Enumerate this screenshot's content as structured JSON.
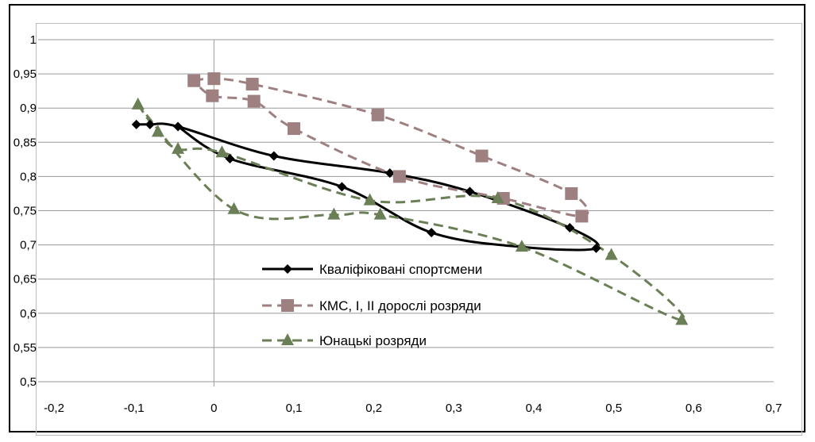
{
  "chart_data": {
    "type": "scatter",
    "title": "",
    "xlabel": "",
    "ylabel": "",
    "xlim": [
      -0.2,
      0.7
    ],
    "ylim": [
      0.5,
      1.0
    ],
    "x_ticks": [
      "-0,2",
      "-0,1",
      "0",
      "0,1",
      "0,2",
      "0,3",
      "0,4",
      "0,5",
      "0,6",
      "0,7"
    ],
    "y_ticks": [
      "0,5",
      "0,55",
      "0,6",
      "0,65",
      "0,7",
      "0,75",
      "0,8",
      "0,85",
      "0,9",
      "0,95",
      "1"
    ],
    "grid": "horizontal",
    "legend_position": "center",
    "series": [
      {
        "name": "Кваліфіковані спортсмени",
        "color": "#000000",
        "marker": "diamond",
        "line": "solid",
        "points": [
          [
            -0.097,
            0.876
          ],
          [
            -0.08,
            0.876
          ],
          [
            -0.045,
            0.873
          ],
          [
            0.075,
            0.83
          ],
          [
            0.22,
            0.805
          ],
          [
            0.32,
            0.778
          ],
          [
            0.445,
            0.725
          ],
          [
            0.478,
            0.695
          ],
          [
            0.385,
            0.697
          ],
          [
            0.272,
            0.718
          ],
          [
            0.16,
            0.785
          ],
          [
            0.02,
            0.826
          ],
          [
            -0.045,
            0.873
          ]
        ]
      },
      {
        "name": "КМС, I, II дорослі розряди",
        "color": "#9e8080",
        "marker": "square",
        "line": "dashed",
        "points": [
          [
            -0.025,
            0.94
          ],
          [
            0.0,
            0.943
          ],
          [
            0.048,
            0.935
          ],
          [
            0.205,
            0.89
          ],
          [
            0.335,
            0.83
          ],
          [
            0.447,
            0.775
          ],
          [
            0.46,
            0.742
          ],
          [
            0.362,
            0.768
          ],
          [
            0.232,
            0.8
          ],
          [
            0.1,
            0.87
          ],
          [
            0.05,
            0.91
          ],
          [
            -0.002,
            0.918
          ],
          [
            -0.025,
            0.94
          ]
        ]
      },
      {
        "name": "Юнацькі розряди",
        "color": "#6b7f56",
        "marker": "triangle",
        "line": "dashed",
        "points": [
          [
            -0.095,
            0.905
          ],
          [
            -0.07,
            0.865
          ],
          [
            -0.045,
            0.84
          ],
          [
            0.01,
            0.835
          ],
          [
            0.195,
            0.765
          ],
          [
            0.355,
            0.768
          ],
          [
            0.497,
            0.685
          ],
          [
            0.585,
            0.59
          ],
          [
            0.385,
            0.697
          ],
          [
            0.208,
            0.744
          ],
          [
            0.15,
            0.744
          ],
          [
            0.025,
            0.752
          ],
          [
            -0.095,
            0.905
          ]
        ]
      }
    ]
  }
}
